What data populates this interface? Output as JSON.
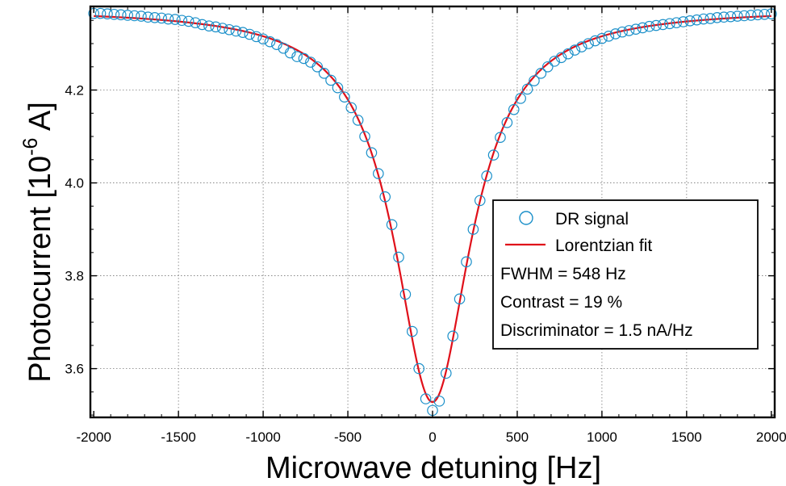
{
  "chart_data": {
    "type": "scatter",
    "xlabel": "Microwave detuning [Hz]",
    "ylabel": {
      "main": "Photocurrent [10",
      "exponent": "-6",
      "unit": " A]"
    },
    "xlim": [
      -2020,
      2020
    ],
    "ylim": [
      3.495,
      4.38
    ],
    "x_ticks": [
      -2000,
      -1500,
      -1000,
      -500,
      0,
      500,
      1000,
      1500,
      2000
    ],
    "x_tick_labels": [
      "-2000",
      "-1500",
      "-1000",
      "-500",
      "0",
      "500",
      "1000",
      "1500",
      "2000"
    ],
    "y_ticks": [
      3.6,
      3.8,
      4.0,
      4.2
    ],
    "y_tick_labels": [
      "3.6",
      "3.8",
      "4.0",
      "4.2"
    ],
    "grid": true,
    "legend_placement": "right",
    "series": [
      {
        "name": "DR signal",
        "kind": "markers",
        "marker": "open-circle",
        "color": "#1a8fc9",
        "x": [
          -2000,
          -1960,
          -1920,
          -1880,
          -1840,
          -1800,
          -1760,
          -1720,
          -1680,
          -1640,
          -1600,
          -1560,
          -1520,
          -1480,
          -1440,
          -1400,
          -1360,
          -1320,
          -1280,
          -1240,
          -1200,
          -1160,
          -1120,
          -1080,
          -1040,
          -1000,
          -960,
          -920,
          -880,
          -840,
          -800,
          -760,
          -720,
          -680,
          -640,
          -600,
          -560,
          -520,
          -480,
          -440,
          -400,
          -360,
          -320,
          -280,
          -240,
          -200,
          -160,
          -120,
          -80,
          -40,
          0,
          40,
          80,
          120,
          160,
          200,
          240,
          280,
          320,
          360,
          400,
          440,
          480,
          520,
          560,
          600,
          640,
          680,
          720,
          760,
          800,
          840,
          880,
          920,
          960,
          1000,
          1040,
          1080,
          1120,
          1160,
          1200,
          1240,
          1280,
          1320,
          1360,
          1400,
          1440,
          1480,
          1520,
          1560,
          1600,
          1640,
          1680,
          1720,
          1760,
          1800,
          1840,
          1880,
          1920,
          1960,
          2000
        ],
        "y": [
          4.365,
          4.365,
          4.364,
          4.363,
          4.362,
          4.361,
          4.36,
          4.359,
          4.357,
          4.356,
          4.355,
          4.353,
          4.352,
          4.35,
          4.348,
          4.345,
          4.341,
          4.338,
          4.336,
          4.333,
          4.33,
          4.327,
          4.324,
          4.32,
          4.315,
          4.31,
          4.304,
          4.298,
          4.29,
          4.28,
          4.272,
          4.268,
          4.26,
          4.25,
          4.236,
          4.221,
          4.205,
          4.185,
          4.162,
          4.135,
          4.1,
          4.065,
          4.02,
          3.97,
          3.91,
          3.84,
          3.76,
          3.68,
          3.6,
          3.535,
          3.51,
          3.53,
          3.59,
          3.67,
          3.75,
          3.83,
          3.9,
          3.962,
          4.015,
          4.06,
          4.098,
          4.13,
          4.158,
          4.182,
          4.202,
          4.22,
          4.236,
          4.25,
          4.262,
          4.27,
          4.278,
          4.286,
          4.293,
          4.3,
          4.306,
          4.311,
          4.316,
          4.321,
          4.325,
          4.328,
          4.331,
          4.334,
          4.337,
          4.339,
          4.341,
          4.343,
          4.345,
          4.347,
          4.349,
          4.351,
          4.353,
          4.354,
          4.356,
          4.357,
          4.358,
          4.359,
          4.36,
          4.361,
          4.362,
          4.363,
          4.364
        ]
      },
      {
        "name": "Lorentzian fit",
        "kind": "line",
        "color": "#e0101a",
        "baseline": 4.375,
        "depth": 0.847,
        "center": 0,
        "fwhm": 548,
        "x_range": [
          -2000,
          2000
        ]
      }
    ],
    "annotations": [
      "FWHM = 548 Hz",
      "Contrast = 19 %",
      "Discriminator = 1.5 nA/Hz"
    ]
  }
}
